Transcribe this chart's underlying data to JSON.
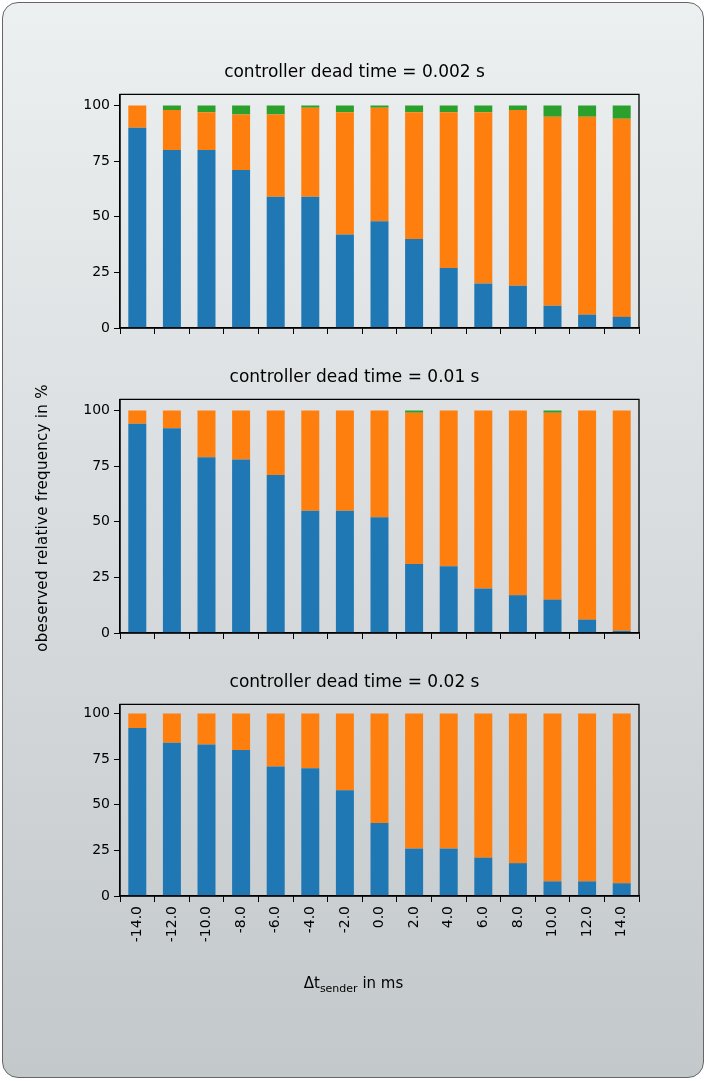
{
  "chart_data": [
    {
      "type": "bar",
      "title": "controller dead time = 0.002 s",
      "stacked": true,
      "tick_labels": "y",
      "categories": [
        "-14.0",
        "-12.0",
        "-10.0",
        "-8.0",
        "-6.0",
        "-4.0",
        "-2.0",
        "0.0",
        "2.0",
        "4.0",
        "6.0",
        "8.0",
        "10.0",
        "12.0",
        "14.0"
      ],
      "series": [
        {
          "color": "#1f77b4",
          "values": [
            90,
            80,
            80,
            71,
            59,
            59,
            42,
            48,
            40,
            27,
            20,
            19,
            10,
            6,
            5
          ]
        },
        {
          "color": "#ff7f0e",
          "values": [
            10,
            18,
            17,
            25,
            37,
            40,
            55,
            51,
            57,
            70,
            77,
            79,
            85,
            89,
            89
          ]
        },
        {
          "color": "#2ca02c",
          "values": [
            0,
            2,
            3,
            4,
            4,
            1,
            3,
            1,
            3,
            3,
            3,
            2,
            5,
            5,
            6
          ]
        }
      ],
      "ylim": [
        0,
        105
      ],
      "yticks": [
        0,
        25,
        50,
        75,
        100
      ],
      "grid": false
    },
    {
      "type": "bar",
      "title": "controller dead time = 0.01 s",
      "stacked": true,
      "tick_labels": "y",
      "ylabel": "obeserved relative frequency in %",
      "categories": [
        "-14.0",
        "-12.0",
        "-10.0",
        "-8.0",
        "-6.0",
        "-4.0",
        "-2.0",
        "0.0",
        "2.0",
        "4.0",
        "6.0",
        "8.0",
        "10.0",
        "12.0",
        "14.0"
      ],
      "series": [
        {
          "color": "#1f77b4",
          "values": [
            94,
            92,
            79,
            78,
            71,
            55,
            55,
            52,
            31,
            30,
            20,
            17,
            15,
            6,
            1
          ]
        },
        {
          "color": "#ff7f0e",
          "values": [
            6,
            8,
            21,
            22,
            29,
            45,
            45,
            48,
            68,
            70,
            80,
            83,
            84,
            94,
            99
          ]
        },
        {
          "color": "#2ca02c",
          "values": [
            0,
            0,
            0,
            0,
            0,
            0,
            0,
            0,
            1,
            0,
            0,
            0,
            1,
            0,
            0
          ]
        }
      ],
      "ylim": [
        0,
        105
      ],
      "yticks": [
        0,
        25,
        50,
        75,
        100
      ],
      "grid": false
    },
    {
      "type": "bar",
      "title": "controller dead time = 0.02 s",
      "stacked": true,
      "xlabel": "Δt$_{sender}$ in ms",
      "categories": [
        "-14.0",
        "-12.0",
        "-10.0",
        "-8.0",
        "-6.0",
        "-4.0",
        "-2.0",
        "0.0",
        "2.0",
        "4.0",
        "6.0",
        "8.0",
        "10.0",
        "12.0",
        "14.0"
      ],
      "series": [
        {
          "color": "#1f77b4",
          "values": [
            92,
            84,
            83,
            80,
            71,
            70,
            58,
            40,
            26,
            26,
            21,
            18,
            8,
            8,
            7
          ]
        },
        {
          "color": "#ff7f0e",
          "values": [
            8,
            16,
            17,
            20,
            29,
            30,
            42,
            60,
            74,
            74,
            79,
            82,
            92,
            92,
            93
          ]
        }
      ],
      "ylim": [
        0,
        105
      ],
      "yticks": [
        0,
        25,
        50,
        75,
        100
      ],
      "grid": false
    }
  ]
}
